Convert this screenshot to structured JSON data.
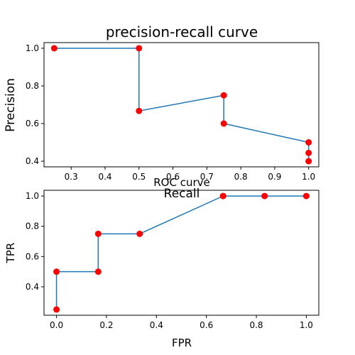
{
  "chart_data": [
    {
      "type": "line",
      "title": "precision-recall curve",
      "xlabel": "Recall",
      "ylabel": "Precision",
      "xlim": [
        0.22,
        1.03
      ],
      "ylim": [
        0.37,
        1.03
      ],
      "xticks": [
        0.3,
        0.4,
        0.5,
        0.6,
        0.7,
        0.8,
        0.9,
        1.0
      ],
      "xtick_labels": [
        "0.3",
        "0.4",
        "0.5",
        "0.6",
        "0.7",
        "0.8",
        "0.9",
        "1.0"
      ],
      "yticks": [
        0.4,
        0.6,
        0.8,
        1.0
      ],
      "ytick_labels": [
        "0.4",
        "0.6",
        "0.8",
        "1.0"
      ],
      "grid": false,
      "line_color": "#1f77b4",
      "marker_color": "#ff0000",
      "series": [
        {
          "x": [
            0.25,
            0.5,
            0.5,
            0.75,
            0.75,
            1.0,
            1.0,
            1.0
          ],
          "y": [
            1.0,
            1.0,
            0.667,
            0.75,
            0.6,
            0.5,
            0.444,
            0.4
          ]
        }
      ]
    },
    {
      "type": "line",
      "title": "ROC curve",
      "xlabel": "FPR",
      "ylabel": "TPR",
      "xlim": [
        -0.05,
        1.05
      ],
      "ylim": [
        0.212,
        1.038
      ],
      "xticks": [
        0.0,
        0.2,
        0.4,
        0.6,
        0.8,
        1.0
      ],
      "xtick_labels": [
        "0.0",
        "0.2",
        "0.4",
        "0.6",
        "0.8",
        "1.0"
      ],
      "yticks": [
        0.4,
        0.6,
        0.8,
        1.0
      ],
      "ytick_labels": [
        "0.4",
        "0.6",
        "0.8",
        "1.0"
      ],
      "grid": false,
      "line_color": "#1f77b4",
      "marker_color": "#ff0000",
      "series": [
        {
          "x": [
            0.0,
            0.0,
            0.167,
            0.167,
            0.333,
            0.667,
            0.667,
            0.833,
            1.0
          ],
          "y": [
            0.25,
            0.5,
            0.5,
            0.75,
            0.75,
            1.0,
            1.0,
            1.0,
            1.0
          ]
        }
      ]
    }
  ]
}
